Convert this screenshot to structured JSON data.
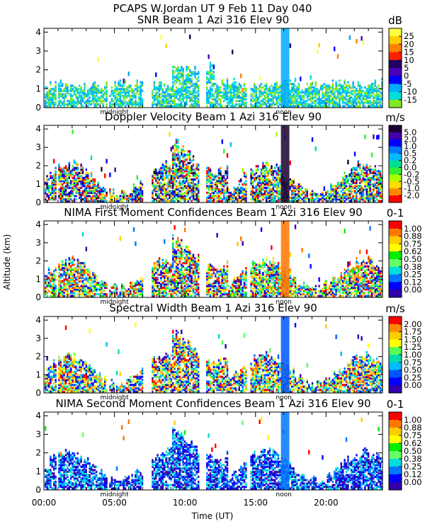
{
  "figure": {
    "title": "PCAPS W.Jordan UT   9 Feb 11 Day 040",
    "xlabel": "Time (UT)",
    "ylabel": "Altitude (km)",
    "xticks": [
      "00:00",
      "05:00",
      "10:00",
      "15:00",
      "20:00"
    ],
    "xtick_hours": [
      0,
      5,
      10,
      15,
      20
    ],
    "xrange_hours": [
      0,
      24
    ],
    "marks": [
      {
        "label": "midnight",
        "hour": 5
      },
      {
        "label": "noon",
        "hour": 17
      }
    ]
  },
  "chart_data": [
    {
      "type": "heatmap",
      "title": "SNR Beam 1 Azi 316 Elev 90",
      "unit": "dB",
      "ylim": [
        0,
        4.2
      ],
      "yticks": [
        "0",
        "1",
        "2",
        "3",
        "4"
      ],
      "ytick_values": [
        0,
        1,
        2,
        3,
        4
      ],
      "colorbar": {
        "labels": [
          "25",
          "20",
          "15",
          "10",
          "5",
          "0",
          "-5",
          "-10",
          "-15"
        ],
        "colors": [
          "#ffff40",
          "#ffcc00",
          "#ff8000",
          "#ff2000",
          "#200060",
          "#4a00b8",
          "#0000ff",
          "#00aaff",
          "#00dddd",
          "#80e820"
        ]
      }
    },
    {
      "type": "heatmap",
      "title": "Doppler Velocity Beam 1 Azi 316 Elev 90",
      "unit": "m/s",
      "ylim": [
        0,
        4.2
      ],
      "yticks": [
        "0",
        "1",
        "2",
        "3",
        "4"
      ],
      "ytick_values": [
        0,
        1,
        2,
        3,
        4
      ],
      "colorbar": {
        "labels": [
          "5.0",
          "2.0",
          "1.0",
          "0.5",
          "0.2",
          "0.0",
          "-0.2",
          "-0.5",
          "-1.0",
          "-2.0"
        ],
        "colors": [
          "#1a0030",
          "#4400aa",
          "#0000ff",
          "#0077ff",
          "#00bbff",
          "#00dd99",
          "#33ee33",
          "#aaff00",
          "#ffdd00",
          "#ff8800",
          "#ff0000"
        ]
      }
    },
    {
      "type": "heatmap",
      "title": "NIMA First Moment Confidences Beam 1 Azi 316 Elev 90",
      "unit": "0-1",
      "ylim": [
        0,
        4.2
      ],
      "yticks": [
        "0",
        "1",
        "2",
        "3",
        "4"
      ],
      "ytick_values": [
        0,
        1,
        2,
        3,
        4
      ],
      "colorbar": {
        "labels": [
          "1.00",
          "0.88",
          "0.75",
          "0.62",
          "0.50",
          "0.38",
          "0.25",
          "0.12",
          "0.00"
        ],
        "colors": [
          "#ff0000",
          "#ff7700",
          "#ffcc00",
          "#ffff00",
          "#00ee00",
          "#66ff66",
          "#00dddd",
          "#0077ff",
          "#0000ff",
          "#3300aa"
        ]
      }
    },
    {
      "type": "heatmap",
      "title": "Spectral Width Beam 1 Azi 316 Elev 90",
      "unit": "m/s",
      "ylim": [
        0,
        4.2
      ],
      "yticks": [
        "0",
        "1",
        "2",
        "3",
        "4"
      ],
      "ytick_values": [
        0,
        1,
        2,
        3,
        4
      ],
      "colorbar": {
        "labels": [
          "2.00",
          "1.75",
          "1.50",
          "1.25",
          "1.00",
          "0.75",
          "0.50",
          "0.25",
          "0.00"
        ],
        "colors": [
          "#ff0000",
          "#ff8800",
          "#ffcc00",
          "#ffff00",
          "#55ff55",
          "#00ddaa",
          "#00bbff",
          "#0055ff",
          "#0000ff",
          "#3300aa"
        ]
      }
    },
    {
      "type": "heatmap",
      "title": "NIMA Second Moment Confidences Beam 1 Azi 316 Elev 90",
      "unit": "0-1",
      "ylim": [
        0,
        4.2
      ],
      "yticks": [
        "0",
        "1",
        "2",
        "3",
        "4"
      ],
      "ytick_values": [
        0,
        1,
        2,
        3,
        4
      ],
      "colorbar": {
        "labels": [
          "1.00",
          "0.88",
          "0.75",
          "0.62",
          "0.50",
          "0.38",
          "0.25",
          "0.12",
          "0.00"
        ],
        "colors": [
          "#ff0000",
          "#ff7700",
          "#ffcc00",
          "#ffff00",
          "#00ee00",
          "#66ff66",
          "#00dddd",
          "#0077ff",
          "#0000ff",
          "#3300aa"
        ]
      }
    }
  ]
}
